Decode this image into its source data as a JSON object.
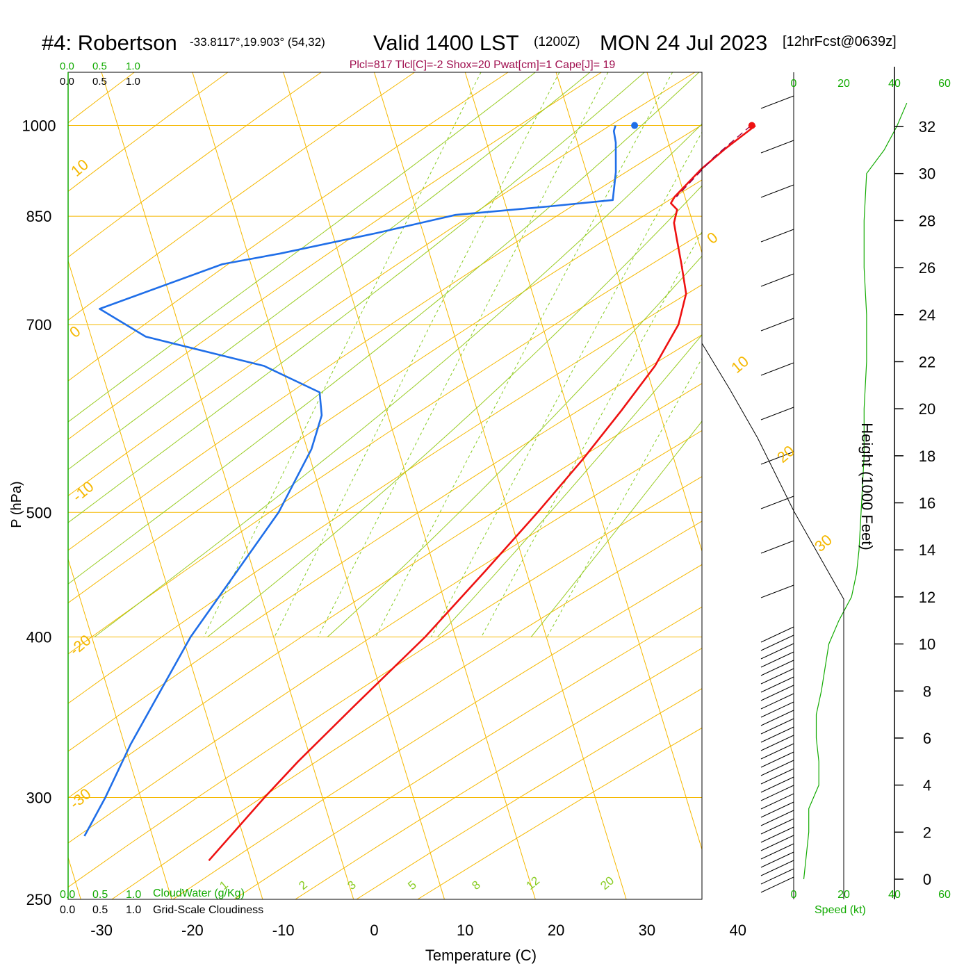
{
  "header": {
    "station": "#4: Robertson",
    "coords": "-33.8117°,19.903° (54,32)",
    "valid": "Valid 1400 LST",
    "utc": "(1200Z)",
    "date": "MON 24 Jul 2023",
    "forecast": "[12hrFcst@0639z]"
  },
  "indices": "Plcl=817 Tlcl[C]=-2 Shox=20 Pwat[cm]=1 Cape[J]= 19",
  "scales": {
    "cloudwater_ticks": [
      "0.0",
      "0.5",
      "1.0"
    ],
    "cloudwater_label": "CloudWater (g/Kg)",
    "cloudiness_ticks": [
      "0.0",
      "0.5",
      "1.0"
    ],
    "cloudiness_label": "Grid-Scale Cloudiness",
    "speed_ticks": [
      "0",
      "20",
      "40",
      "60"
    ],
    "speed_label": "Speed (kt)"
  },
  "colors": {
    "temperature": "#ee1111",
    "dewpoint": "#1f6ee8",
    "parcel": "#990044",
    "isotherm": "#f5b800",
    "mixing_ratio": "#88cc22",
    "speed": "#11aa00"
  },
  "chart_data": {
    "type": "line",
    "subtype": "skew-T log-P",
    "xlabel": "Temperature (C)",
    "ylabel": "P (hPa)",
    "y2label": "Height (1000 Feet)",
    "x_ticks": [
      -30,
      -20,
      -10,
      0,
      10,
      20,
      30,
      40
    ],
    "x_range": [
      -34,
      36
    ],
    "p_ticks": [
      250,
      300,
      400,
      500,
      700,
      850,
      1000
    ],
    "p_range": [
      1100,
      250
    ],
    "height_ticks": [
      0,
      2,
      4,
      6,
      8,
      10,
      12,
      14,
      16,
      18,
      20,
      22,
      24,
      26,
      28,
      30,
      32
    ],
    "dry_adiabat_labels": [
      "-30",
      "-20",
      "-10",
      "0",
      "10",
      "20",
      "30"
    ],
    "isotherm_labels": [
      "10",
      "0",
      "-10",
      "-20",
      "-30"
    ],
    "mixing_ratio_labels": [
      "1",
      "2",
      "3",
      "5",
      "8",
      "12",
      "20"
    ],
    "series": [
      {
        "key": "temperature",
        "points": [
          [
            16.0,
            1000
          ],
          [
            13.5,
            960
          ],
          [
            11.5,
            925
          ],
          [
            9.5,
            880
          ],
          [
            9.3,
            870
          ],
          [
            10.2,
            860
          ],
          [
            10.3,
            840
          ],
          [
            11.0,
            820
          ],
          [
            12.5,
            780
          ],
          [
            14.0,
            740
          ],
          [
            14.2,
            700
          ],
          [
            13.0,
            650
          ],
          [
            10.8,
            600
          ],
          [
            8.2,
            550
          ],
          [
            5.0,
            500
          ],
          [
            1.2,
            450
          ],
          [
            -3.2,
            400
          ],
          [
            -8.5,
            355
          ],
          [
            -13.0,
            320
          ],
          [
            -15.5,
            300
          ],
          [
            -19.5,
            268
          ]
        ]
      },
      {
        "key": "dewpoint",
        "points": [
          [
            0.6,
            1000
          ],
          [
            0.6,
            990
          ],
          [
            1.2,
            970
          ],
          [
            2.2,
            920
          ],
          [
            2.8,
            875
          ],
          [
            -4.0,
            865
          ],
          [
            -14.0,
            852
          ],
          [
            -22.0,
            825
          ],
          [
            -32.0,
            795
          ],
          [
            -38.0,
            780
          ],
          [
            -50.0,
            720
          ],
          [
            -44.0,
            685
          ],
          [
            -30.0,
            650
          ],
          [
            -23.0,
            620
          ],
          [
            -22.0,
            595
          ],
          [
            -22.0,
            560
          ],
          [
            -23.5,
            500
          ],
          [
            -29.0,
            400
          ],
          [
            -32.0,
            330
          ],
          [
            -33.0,
            300
          ],
          [
            -34.0,
            280
          ]
        ]
      },
      {
        "key": "parcel",
        "points": [
          [
            15.5,
            1000
          ],
          [
            12.5,
            945
          ],
          [
            9.7,
            880
          ]
        ]
      }
    ],
    "surface_points": [
      {
        "key": "temperature",
        "value": [
          15.6,
          1000
        ]
      },
      {
        "key": "dewpoint",
        "value": [
          2.7,
          1000
        ]
      }
    ],
    "wind_speed_profile": [
      [
        4,
        0
      ],
      [
        5,
        1
      ],
      [
        6,
        2
      ],
      [
        6,
        3
      ],
      [
        10,
        4
      ],
      [
        10,
        5
      ],
      [
        9,
        6
      ],
      [
        9,
        7
      ],
      [
        11,
        8
      ],
      [
        14,
        10
      ],
      [
        18,
        11
      ],
      [
        23,
        12
      ],
      [
        25,
        13
      ],
      [
        26,
        14
      ],
      [
        27,
        16
      ],
      [
        28,
        18
      ],
      [
        28,
        20
      ],
      [
        29,
        22
      ],
      [
        29,
        24
      ],
      [
        28,
        26
      ],
      [
        28,
        28
      ],
      [
        29,
        30
      ],
      [
        36,
        31
      ],
      [
        41,
        32
      ],
      [
        45,
        33
      ]
    ],
    "wind_speed_range": [
      0,
      60
    ],
    "height_range": [
      0,
      33
    ]
  }
}
